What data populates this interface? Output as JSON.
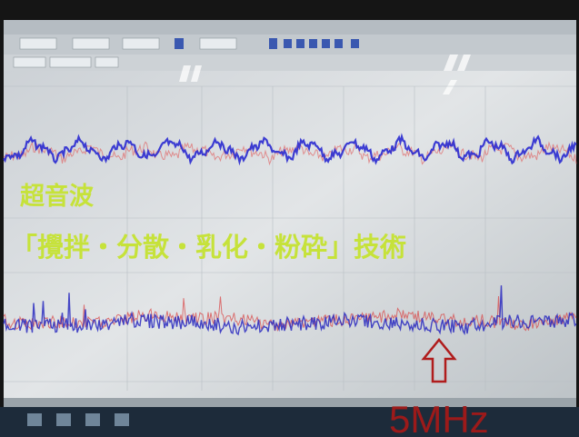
{
  "overlay": {
    "title": "超音波",
    "subtitle": "「攪拌・分散・乳化・粉砕」技術",
    "annotation": "5MHz"
  }
}
